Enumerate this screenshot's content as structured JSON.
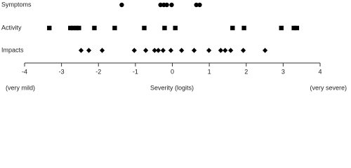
{
  "chart_data": {
    "type": "scatter",
    "xlabel": "Severity (logits)",
    "annotations": [
      "(very mild)",
      "(very severe)"
    ],
    "xlim": [
      -4,
      4
    ],
    "xticks": [
      -4,
      -3,
      -2,
      -1,
      0,
      1,
      2,
      3,
      4
    ],
    "series": [
      {
        "name": "Symptoms",
        "marker": "circle",
        "color": "#000000",
        "x": [
          -1.37,
          -0.32,
          -0.23,
          -0.15,
          -0.02,
          0.65,
          0.74
        ]
      },
      {
        "name": "Activity",
        "marker": "square",
        "color": "#000000",
        "x": [
          -3.33,
          -2.76,
          -2.68,
          -2.6,
          -2.53,
          -2.11,
          -1.56,
          -0.76,
          -0.21,
          0.08,
          1.63,
          1.94,
          2.95,
          3.29,
          3.37
        ]
      },
      {
        "name": "Impacts",
        "marker": "diamond",
        "color": "#000000",
        "x": [
          -2.47,
          -2.26,
          -1.9,
          -1.03,
          -0.72,
          -0.48,
          -0.38,
          -0.25,
          -0.04,
          0.25,
          0.59,
          0.99,
          1.31,
          1.43,
          1.58,
          1.92,
          2.51
        ]
      }
    ]
  }
}
